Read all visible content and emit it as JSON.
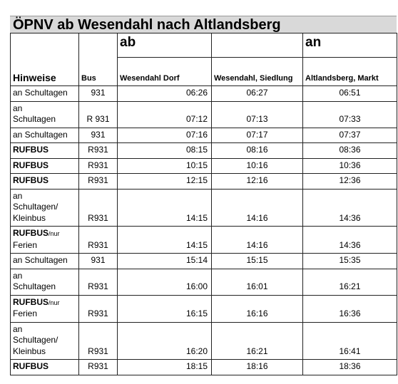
{
  "title": "ÖPNV ab Wesendahl nach Altlandsberg",
  "header": {
    "hint": "Hinweise",
    "bus": "Bus",
    "ab": "ab",
    "an": "an",
    "col1": "Wesendahl Dorf",
    "col2": "Wesendahl, Siedlung",
    "col3": "Altlandsberg, Markt"
  },
  "rows": [
    {
      "hint": [
        "an Schultagen"
      ],
      "bus": "931",
      "times": [
        "06:26",
        "06:27",
        "06:51"
      ]
    },
    {
      "hint": [
        "an",
        "Schultagen"
      ],
      "bus": "R 931",
      "times": [
        "07:12",
        "07:13",
        "07:33"
      ]
    },
    {
      "hint": [
        "an Schultagen"
      ],
      "bus": "931",
      "times": [
        "07:16",
        "07:17",
        "07:37"
      ]
    },
    {
      "hint_bold": "RUFBUS",
      "bus": "R931",
      "times": [
        "08:15",
        "08:16",
        "08:36"
      ]
    },
    {
      "hint_bold": "RUFBUS",
      "bus": "R931",
      "times": [
        "10:15",
        "10:16",
        "10:36"
      ]
    },
    {
      "hint_bold": "RUFBUS",
      "bus": "R931",
      "times": [
        "12:15",
        "12:16",
        "12:36"
      ]
    },
    {
      "hint": [
        "an",
        "Schultagen/",
        "Kleinbus"
      ],
      "bus": "R931",
      "times": [
        "14:15",
        "14:16",
        "14:36"
      ]
    },
    {
      "hint_bold": "RUFBUS",
      "hint_small": "/nur",
      "hint": [
        "Ferien"
      ],
      "bus": "R931",
      "times": [
        "14:15",
        "14:16",
        "14:36"
      ]
    },
    {
      "hint": [
        "an Schultagen"
      ],
      "bus": "931",
      "times": [
        "15:14",
        "15:15",
        "15:35"
      ]
    },
    {
      "hint": [
        "an",
        "Schultagen"
      ],
      "bus": "R931",
      "times": [
        "16:00",
        "16:01",
        "16:21"
      ]
    },
    {
      "hint_bold": "RUFBUS",
      "hint_small": "/nur",
      "hint": [
        "Ferien"
      ],
      "bus": "R931",
      "times": [
        "16:15",
        "16:16",
        "16:36"
      ]
    },
    {
      "hint": [
        "an",
        "Schultagen/",
        "Kleinbus"
      ],
      "bus": "R931",
      "times": [
        "16:20",
        "16:21",
        "16:41"
      ]
    },
    {
      "hint_bold": "RUFBUS",
      "bus": "R931",
      "times": [
        "18:15",
        "18:16",
        "18:36"
      ]
    }
  ]
}
